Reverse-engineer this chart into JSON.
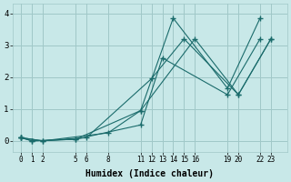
{
  "xlabel": "Humidex (Indice chaleur)",
  "ylabel": "",
  "background_color": "#c8e8e8",
  "grid_color": "#a0c8c8",
  "line_color": "#1a6b6b",
  "lines": [
    {
      "x": [
        0,
        1,
        5,
        11,
        14,
        19,
        22
      ],
      "y": [
        0.1,
        0.0,
        0.05,
        0.95,
        3.85,
        1.65,
        3.85
      ]
    },
    {
      "x": [
        0,
        2,
        6,
        12,
        15,
        20,
        23
      ],
      "y": [
        0.1,
        0.0,
        0.1,
        1.95,
        3.2,
        1.45,
        3.2
      ]
    },
    {
      "x": [
        0,
        1,
        5,
        11,
        13,
        19,
        22
      ],
      "y": [
        0.1,
        0.0,
        0.05,
        0.5,
        2.6,
        1.45,
        3.2
      ]
    },
    {
      "x": [
        0,
        2,
        8,
        11,
        16,
        20,
        23
      ],
      "y": [
        0.1,
        0.0,
        0.25,
        0.95,
        3.2,
        1.45,
        3.2
      ]
    }
  ],
  "xtick_vals": [
    0,
    1,
    2,
    5,
    6,
    8,
    11,
    12,
    13,
    14,
    15,
    16,
    19,
    20,
    22,
    23
  ],
  "yticks": [
    0,
    1,
    2,
    3,
    4
  ],
  "xlim": [
    -0.8,
    24.5
  ],
  "ylim": [
    -0.35,
    4.3
  ],
  "figsize": [
    3.2,
    2.0
  ],
  "dpi": 100
}
